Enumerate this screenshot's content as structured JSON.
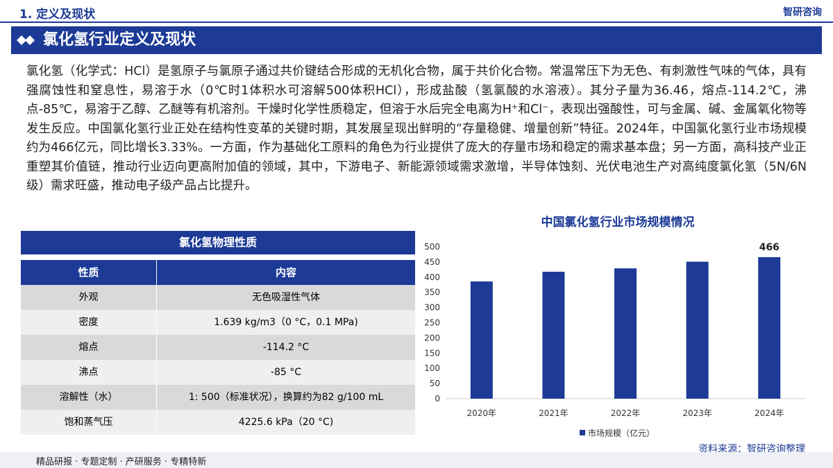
{
  "header": {
    "section": "1. 定义及现状",
    "logo": "智研咨询"
  },
  "banner": {
    "title": "氯化氢行业定义及现状"
  },
  "paragraph": "氯化氢（化学式：HCl）是氢原子与氯原子通过共价键结合形成的无机化合物，属于共价化合物。常温常压下为无色、有刺激性气味的气体，具有强腐蚀性和窒息性，易溶于水（0℃时1体积水可溶解500体积HCl），形成盐酸（氢氯酸的水溶液）。其分子量为36.46，熔点-114.2℃，沸点-85℃，易溶于乙醇、乙醚等有机溶剂。干燥时化学性质稳定，但溶于水后完全电离为H⁺和Cl⁻，表现出强酸性，可与金属、碱、金属氧化物等发生反应。中国氯化氢行业正处在结构性变革的关键时期，其发展呈现出鲜明的“存量稳健、增量创新”特征。2024年，中国氯化氢行业市场规模约为466亿元，同比增长3.33%。一方面，作为基础化工原料的角色为行业提供了庞大的存量市场和稳定的需求基本盘；另一方面，高科技产业正重塑其价值链，推动行业迈向更高附加值的领域，其中，下游电子、新能源领域需求激增，半导体蚀刻、光伏电池生产对高纯度氯化氢（5N/6N级）需求旺盛，推动电子级产品占比提升。",
  "table": {
    "title": "氯化氢物理性质",
    "columns": [
      "性质",
      "内容"
    ],
    "rows": [
      [
        "外观",
        "无色吸湿性气体"
      ],
      [
        "密度",
        "1.639 kg/m3（0 °C，0.1 MPa)"
      ],
      [
        "熔点",
        "-114.2 °C"
      ],
      [
        "沸点",
        "-85 °C"
      ],
      [
        "溶解性（水）",
        "1: 500（标准状况），换算约为82 g/100 mL"
      ],
      [
        "饱和蒸气压",
        "4225.6 kPa（20 °C)"
      ]
    ]
  },
  "chart_data": {
    "type": "bar",
    "title": "中国氯化氢行业市场规模情况",
    "categories": [
      "2020年",
      "2021年",
      "2022年",
      "2023年",
      "2024年"
    ],
    "series": [
      {
        "name": "市场规模（亿元）",
        "color": "#1c3a96",
        "values": [
          386,
          418,
          429,
          451,
          466
        ],
        "value_labels": [
          null,
          null,
          null,
          null,
          "466"
        ]
      }
    ],
    "ylim": [
      0,
      500
    ],
    "yticks": [
      0,
      50,
      100,
      150,
      200,
      250,
      300,
      350,
      400,
      450,
      500
    ],
    "grid": false,
    "legend": "bottom"
  },
  "source": "资料来源：智研咨询整理",
  "footer": "精品研报 · 专题定制 · 产研服务 · 专精特新"
}
